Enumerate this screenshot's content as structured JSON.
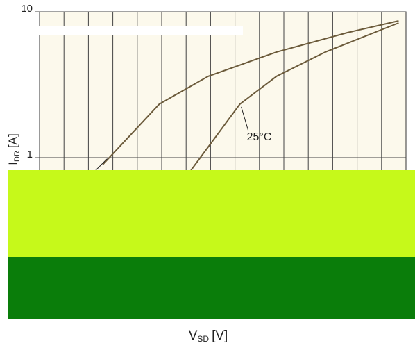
{
  "chart_data": {
    "type": "line",
    "xlabel": "V",
    "xlabel_sub": "SD",
    "xlabel_unit": "[V]",
    "ylabel": "I",
    "ylabel_sub": "DR",
    "ylabel_unit": "[A]",
    "log_y": true,
    "grid": true,
    "xlim": [
      0,
      1.5
    ],
    "xgrid": [
      0.1,
      0.2,
      0.3,
      0.4,
      0.5,
      0.6,
      0.7,
      0.8,
      0.9,
      1.0,
      1.1,
      1.2,
      1.3,
      1.4
    ],
    "ylim": [
      0.1,
      10
    ],
    "yticks": [
      1,
      10
    ],
    "series": [
      {
        "color": "#6b5a3a",
        "x": [
          0.26,
          0.49,
          0.69,
          0.97,
          1.26,
          1.47
        ],
        "values": [
          0.9,
          2.33,
          3.61,
          5.3,
          7.2,
          8.67
        ]
      },
      {
        "name": "25°C",
        "color": "#6b5a3a",
        "x": [
          0.62,
          0.82,
          0.97,
          1.17,
          1.47
        ],
        "values": [
          0.82,
          2.33,
          3.61,
          5.3,
          8.39
        ]
      }
    ]
  }
}
